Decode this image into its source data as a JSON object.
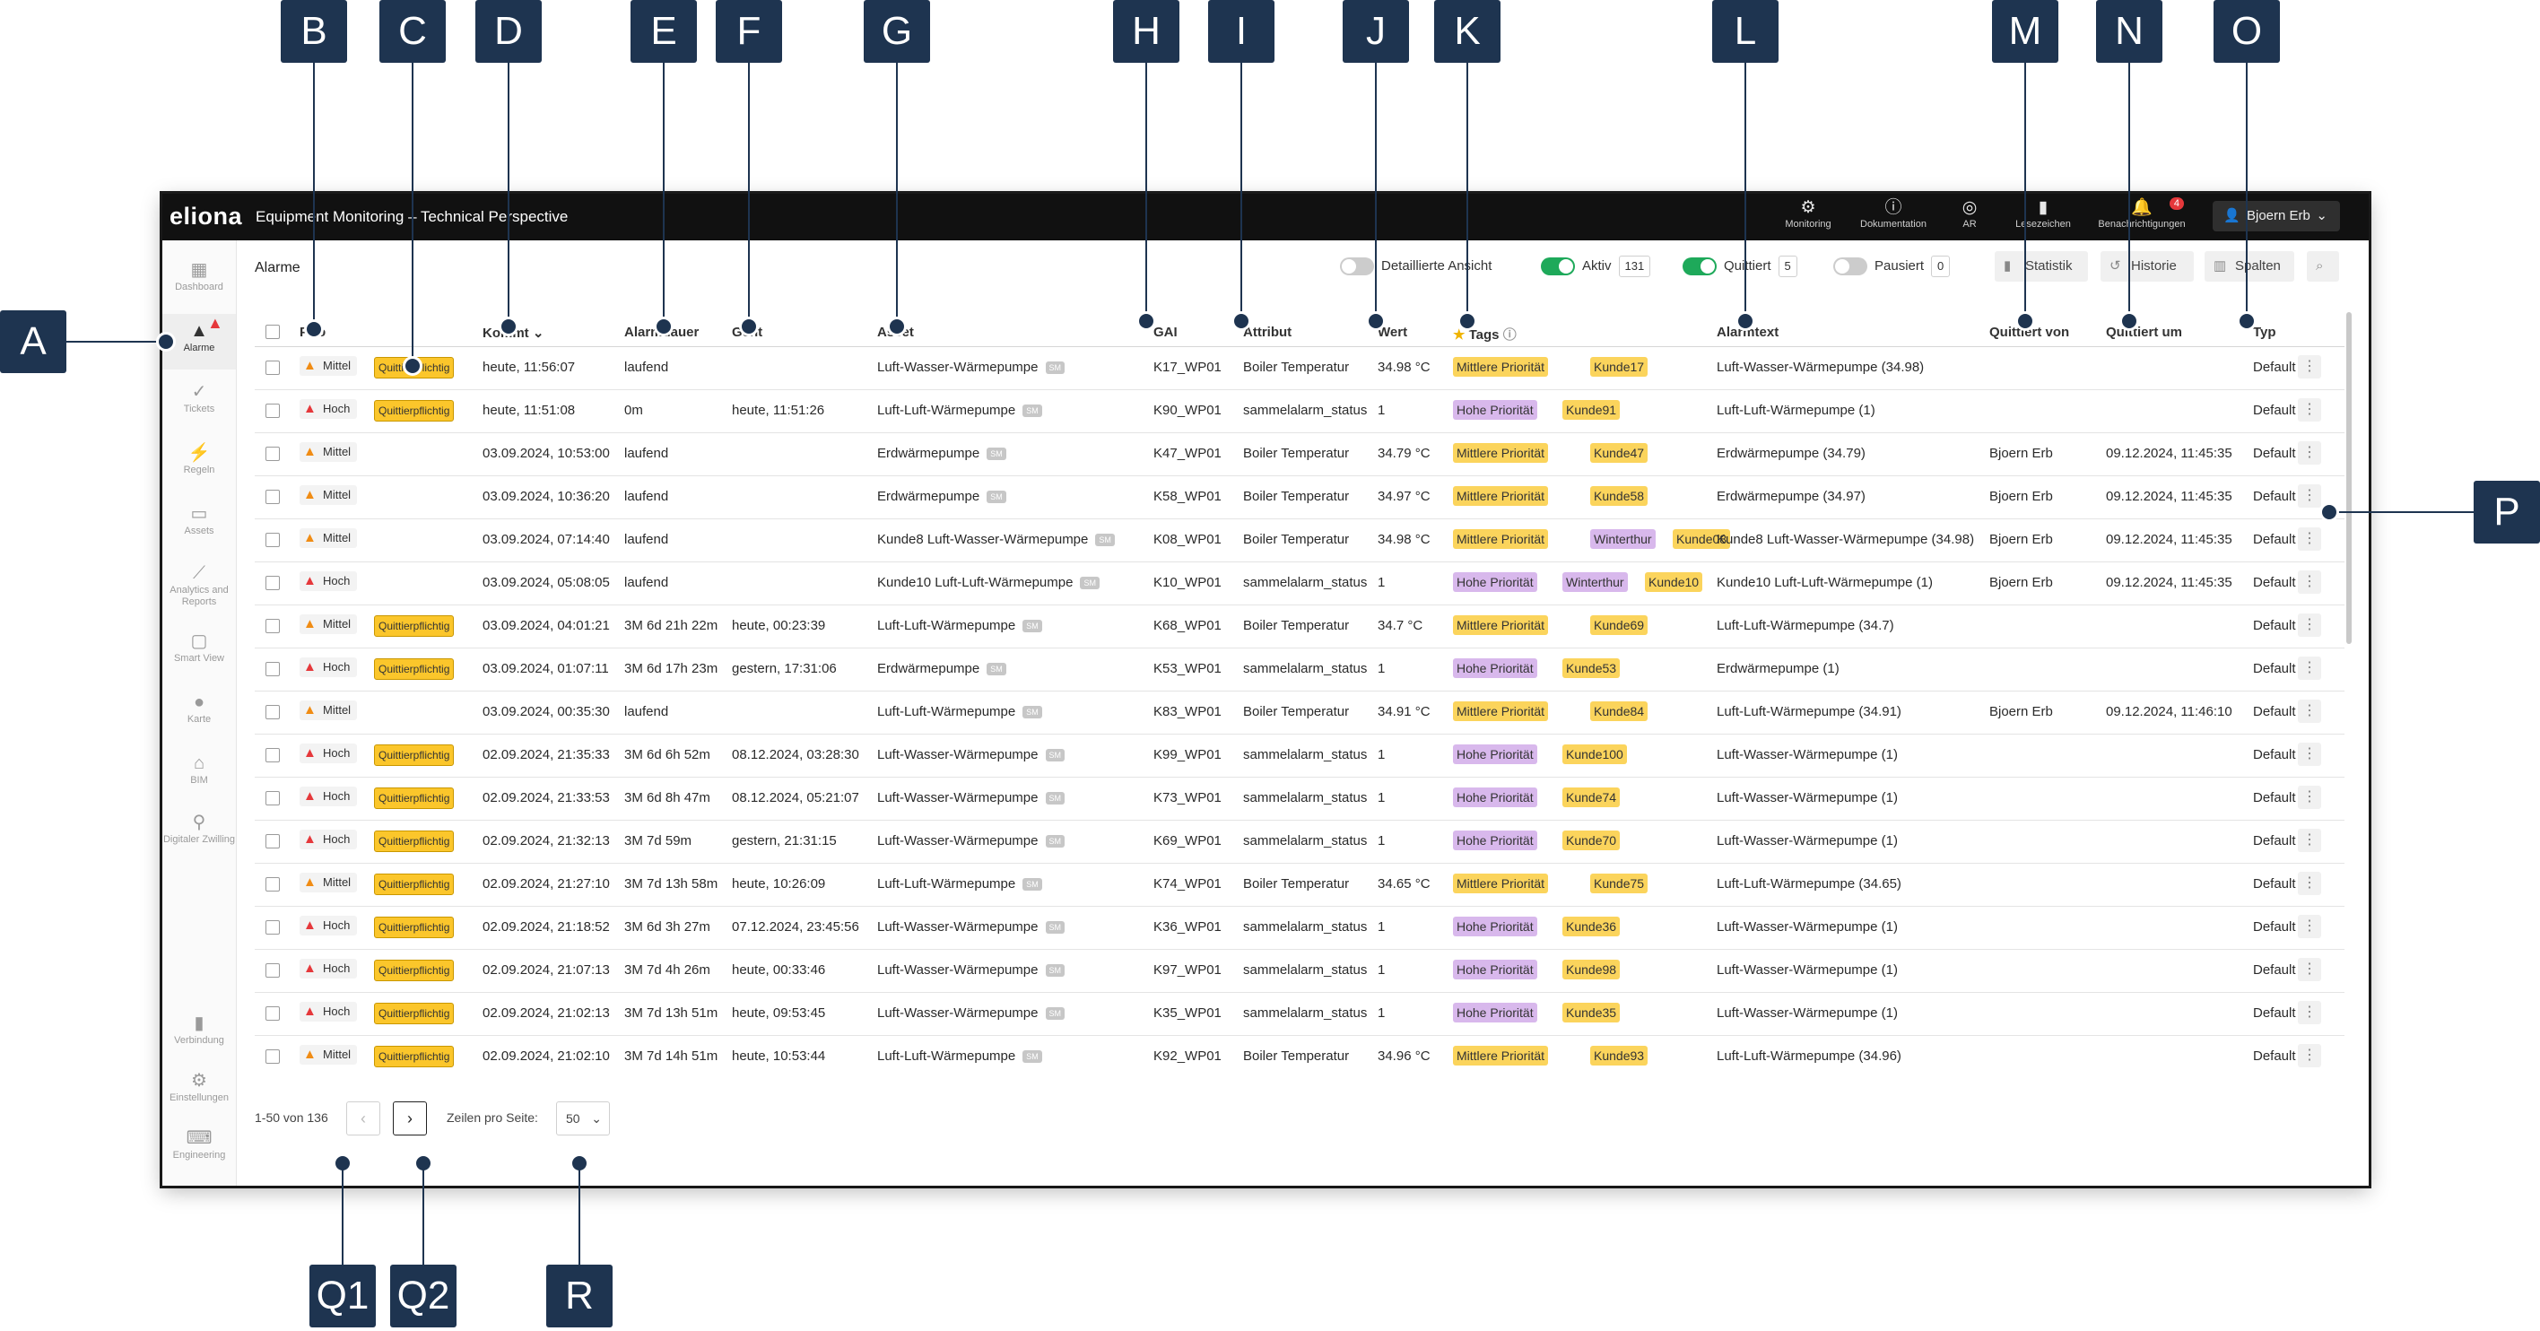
{
  "app": {
    "logo": "eliona",
    "title": "Equipment Monitoring – Technical Perspective",
    "topnav": [
      {
        "label": "Monitoring",
        "icon": "gear-icon"
      },
      {
        "label": "Dokumentation",
        "icon": "info-icon"
      },
      {
        "label": "AR",
        "icon": "ar-icon"
      },
      {
        "label": "Lesezeichen",
        "icon": "bookmark-icon"
      },
      {
        "label": "Benachrichtigungen",
        "icon": "bell-icon",
        "badge": "4"
      }
    ],
    "user": "Bjoern Erb"
  },
  "sidebar": [
    {
      "label": "Dashboard",
      "icon": "dashboard-icon"
    },
    {
      "label": "Alarme",
      "icon": "alarm-icon",
      "active": true
    },
    {
      "label": "Tickets",
      "icon": "tickets-icon"
    },
    {
      "label": "Regeln",
      "icon": "rules-icon"
    },
    {
      "label": "Assets",
      "icon": "assets-icon"
    },
    {
      "label": "Analytics and Reports",
      "icon": "analytics-icon"
    },
    {
      "label": "Smart View",
      "icon": "smart-view-icon"
    },
    {
      "label": "Karte",
      "icon": "map-pin-icon"
    },
    {
      "label": "BIM",
      "icon": "bim-icon"
    },
    {
      "label": "Digitaler Zwilling",
      "icon": "digital-twin-icon"
    },
    {
      "label": "Verbindung",
      "icon": "connection-icon"
    },
    {
      "label": "Einstellungen",
      "icon": "settings-icon"
    },
    {
      "label": "Engineering",
      "icon": "engineering-icon"
    }
  ],
  "page": {
    "title": "Alarme",
    "toolbar": {
      "detail": "Detaillierte Ansicht",
      "aktiv": "Aktiv",
      "aktiv_count": "131",
      "quittiert": "Quittiert",
      "quittiert_count": "5",
      "pausiert": "Pausiert",
      "pausiert_count": "0",
      "statistik": "Statistik",
      "historie": "Historie",
      "spalten": "Spalten"
    }
  },
  "table": {
    "headers": {
      "prio": "Prio",
      "kommt": "Kommt",
      "alarmdauer": "Alarmdauer",
      "geht": "Geht",
      "asset": "Asset",
      "gai": "GAI",
      "attribut": "Attribut",
      "wert": "Wert",
      "tags": "Tags",
      "alarmtext": "Alarmtext",
      "quittiert_von": "Quittiert von",
      "quittiert_um": "Quittiert um",
      "typ": "Typ"
    },
    "rows": [
      {
        "prio": "Mittel",
        "quit": "Quittierpflichtig",
        "kommt": "heute, 11:56:07",
        "dauer": "laufend",
        "geht": "",
        "asset": "Luft-Wasser-Wärmepumpe",
        "gai": "K17_WP01",
        "attr": "Boiler Temperatur",
        "wert": "34.98 °C",
        "tags": [
          "Mittlere Priorität",
          "Kunde17"
        ],
        "text": "Luft-Wasser-Wärmepumpe (34.98)",
        "qvon": "",
        "qum": "",
        "typ": "Default"
      },
      {
        "prio": "Hoch",
        "quit": "Quittierpflichtig",
        "kommt": "heute, 11:51:08",
        "dauer": "0m",
        "geht": "heute, 11:51:26",
        "asset": "Luft-Luft-Wärmepumpe",
        "gai": "K90_WP01",
        "attr": "sammelalarm_status",
        "wert": "1",
        "tags": [
          "Hohe Priorität",
          "Kunde91"
        ],
        "text": "Luft-Luft-Wärmepumpe (1)",
        "qvon": "",
        "qum": "",
        "typ": "Default"
      },
      {
        "prio": "Mittel",
        "quit": "",
        "kommt": "03.09.2024, 10:53:00",
        "dauer": "laufend",
        "geht": "",
        "asset": "Erdwärmepumpe",
        "gai": "K47_WP01",
        "attr": "Boiler Temperatur",
        "wert": "34.79 °C",
        "tags": [
          "Mittlere Priorität",
          "Kunde47"
        ],
        "text": "Erdwärmepumpe (34.79)",
        "qvon": "Bjoern Erb",
        "qum": "09.12.2024, 11:45:35",
        "typ": "Default"
      },
      {
        "prio": "Mittel",
        "quit": "",
        "kommt": "03.09.2024, 10:36:20",
        "dauer": "laufend",
        "geht": "",
        "asset": "Erdwärmepumpe",
        "gai": "K58_WP01",
        "attr": "Boiler Temperatur",
        "wert": "34.97 °C",
        "tags": [
          "Mittlere Priorität",
          "Kunde58"
        ],
        "text": "Erdwärmepumpe (34.97)",
        "qvon": "Bjoern Erb",
        "qum": "09.12.2024, 11:45:35",
        "typ": "Default"
      },
      {
        "prio": "Mittel",
        "quit": "",
        "kommt": "03.09.2024, 07:14:40",
        "dauer": "laufend",
        "geht": "",
        "asset": "Kunde8 Luft-Wasser-Wärmepumpe",
        "gai": "K08_WP01",
        "attr": "Boiler Temperatur",
        "wert": "34.98 °C",
        "tags": [
          "Mittlere Priorität",
          "Winterthur",
          "Kunde08"
        ],
        "text": "Kunde8 Luft-Wasser-Wärmepumpe (34.98)",
        "qvon": "Bjoern Erb",
        "qum": "09.12.2024, 11:45:35",
        "typ": "Default"
      },
      {
        "prio": "Hoch",
        "quit": "",
        "kommt": "03.09.2024, 05:08:05",
        "dauer": "laufend",
        "geht": "",
        "asset": "Kunde10 Luft-Luft-Wärmepumpe",
        "gai": "K10_WP01",
        "attr": "sammelalarm_status",
        "wert": "1",
        "tags": [
          "Hohe Priorität",
          "Winterthur",
          "Kunde10"
        ],
        "text": "Kunde10 Luft-Luft-Wärmepumpe (1)",
        "qvon": "Bjoern Erb",
        "qum": "09.12.2024, 11:45:35",
        "typ": "Default"
      },
      {
        "prio": "Mittel",
        "quit": "Quittierpflichtig",
        "kommt": "03.09.2024, 04:01:21",
        "dauer": "3M 6d 21h 22m",
        "geht": "heute, 00:23:39",
        "asset": "Luft-Luft-Wärmepumpe",
        "gai": "K68_WP01",
        "attr": "Boiler Temperatur",
        "wert": "34.7 °C",
        "tags": [
          "Mittlere Priorität",
          "Kunde69"
        ],
        "text": "Luft-Luft-Wärmepumpe (34.7)",
        "qvon": "",
        "qum": "",
        "typ": "Default"
      },
      {
        "prio": "Hoch",
        "quit": "Quittierpflichtig",
        "kommt": "03.09.2024, 01:07:11",
        "dauer": "3M 6d 17h 23m",
        "geht": "gestern, 17:31:06",
        "asset": "Erdwärmepumpe",
        "gai": "K53_WP01",
        "attr": "sammelalarm_status",
        "wert": "1",
        "tags": [
          "Hohe Priorität",
          "Kunde53"
        ],
        "text": "Erdwärmepumpe (1)",
        "qvon": "",
        "qum": "",
        "typ": "Default"
      },
      {
        "prio": "Mittel",
        "quit": "",
        "kommt": "03.09.2024, 00:35:30",
        "dauer": "laufend",
        "geht": "",
        "asset": "Luft-Luft-Wärmepumpe",
        "gai": "K83_WP01",
        "attr": "Boiler Temperatur",
        "wert": "34.91 °C",
        "tags": [
          "Mittlere Priorität",
          "Kunde84"
        ],
        "text": "Luft-Luft-Wärmepumpe (34.91)",
        "qvon": "Bjoern Erb",
        "qum": "09.12.2024, 11:46:10",
        "typ": "Default"
      },
      {
        "prio": "Hoch",
        "quit": "Quittierpflichtig",
        "kommt": "02.09.2024, 21:35:33",
        "dauer": "3M 6d 6h 52m",
        "geht": "08.12.2024, 03:28:30",
        "asset": "Luft-Wasser-Wärmepumpe",
        "gai": "K99_WP01",
        "attr": "sammelalarm_status",
        "wert": "1",
        "tags": [
          "Hohe Priorität",
          "Kunde100"
        ],
        "text": "Luft-Wasser-Wärmepumpe (1)",
        "qvon": "",
        "qum": "",
        "typ": "Default"
      },
      {
        "prio": "Hoch",
        "quit": "Quittierpflichtig",
        "kommt": "02.09.2024, 21:33:53",
        "dauer": "3M 6d 8h 47m",
        "geht": "08.12.2024, 05:21:07",
        "asset": "Luft-Wasser-Wärmepumpe",
        "gai": "K73_WP01",
        "attr": "sammelalarm_status",
        "wert": "1",
        "tags": [
          "Hohe Priorität",
          "Kunde74"
        ],
        "text": "Luft-Wasser-Wärmepumpe (1)",
        "qvon": "",
        "qum": "",
        "typ": "Default"
      },
      {
        "prio": "Hoch",
        "quit": "Quittierpflichtig",
        "kommt": "02.09.2024, 21:32:13",
        "dauer": "3M 7d 59m",
        "geht": "gestern, 21:31:15",
        "asset": "Luft-Wasser-Wärmepumpe",
        "gai": "K69_WP01",
        "attr": "sammelalarm_status",
        "wert": "1",
        "tags": [
          "Hohe Priorität",
          "Kunde70"
        ],
        "text": "Luft-Wasser-Wärmepumpe (1)",
        "qvon": "",
        "qum": "",
        "typ": "Default"
      },
      {
        "prio": "Mittel",
        "quit": "Quittierpflichtig",
        "kommt": "02.09.2024, 21:27:10",
        "dauer": "3M 7d 13h 58m",
        "geht": "heute, 10:26:09",
        "asset": "Luft-Luft-Wärmepumpe",
        "gai": "K74_WP01",
        "attr": "Boiler Temperatur",
        "wert": "34.65 °C",
        "tags": [
          "Mittlere Priorität",
          "Kunde75"
        ],
        "text": "Luft-Luft-Wärmepumpe (34.65)",
        "qvon": "",
        "qum": "",
        "typ": "Default"
      },
      {
        "prio": "Hoch",
        "quit": "Quittierpflichtig",
        "kommt": "02.09.2024, 21:18:52",
        "dauer": "3M 6d 3h 27m",
        "geht": "07.12.2024, 23:45:56",
        "asset": "Luft-Wasser-Wärmepumpe",
        "gai": "K36_WP01",
        "attr": "sammelalarm_status",
        "wert": "1",
        "tags": [
          "Hohe Priorität",
          "Kunde36"
        ],
        "text": "Luft-Wasser-Wärmepumpe (1)",
        "qvon": "",
        "qum": "",
        "typ": "Default"
      },
      {
        "prio": "Hoch",
        "quit": "Quittierpflichtig",
        "kommt": "02.09.2024, 21:07:13",
        "dauer": "3M 7d 4h 26m",
        "geht": "heute, 00:33:46",
        "asset": "Luft-Wasser-Wärmepumpe",
        "gai": "K97_WP01",
        "attr": "sammelalarm_status",
        "wert": "1",
        "tags": [
          "Hohe Priorität",
          "Kunde98"
        ],
        "text": "Luft-Wasser-Wärmepumpe (1)",
        "qvon": "",
        "qum": "",
        "typ": "Default"
      },
      {
        "prio": "Hoch",
        "quit": "Quittierpflichtig",
        "kommt": "02.09.2024, 21:02:13",
        "dauer": "3M 7d 13h 51m",
        "geht": "heute, 09:53:45",
        "asset": "Luft-Wasser-Wärmepumpe",
        "gai": "K35_WP01",
        "attr": "sammelalarm_status",
        "wert": "1",
        "tags": [
          "Hohe Priorität",
          "Kunde35"
        ],
        "text": "Luft-Wasser-Wärmepumpe (1)",
        "qvon": "",
        "qum": "",
        "typ": "Default"
      },
      {
        "prio": "Mittel",
        "quit": "Quittierpflichtig",
        "kommt": "02.09.2024, 21:02:10",
        "dauer": "3M 7d 14h 51m",
        "geht": "heute, 10:53:44",
        "asset": "Luft-Luft-Wärmepumpe",
        "gai": "K92_WP01",
        "attr": "Boiler Temperatur",
        "wert": "34.96 °C",
        "tags": [
          "Mittlere Priorität",
          "Kunde93"
        ],
        "text": "Luft-Luft-Wärmepumpe (34.96)",
        "qvon": "",
        "qum": "",
        "typ": "Default"
      }
    ],
    "asset_badge": "SM"
  },
  "footer": {
    "range": "1-50 von 136",
    "rows_per_page_label": "Zeilen pro Seite:",
    "rows_per_page": "50"
  },
  "annotations": [
    "A",
    "B",
    "C",
    "D",
    "E",
    "F",
    "G",
    "H",
    "I",
    "J",
    "K",
    "L",
    "M",
    "N",
    "O",
    "P",
    "Q1",
    "Q2",
    "R"
  ]
}
